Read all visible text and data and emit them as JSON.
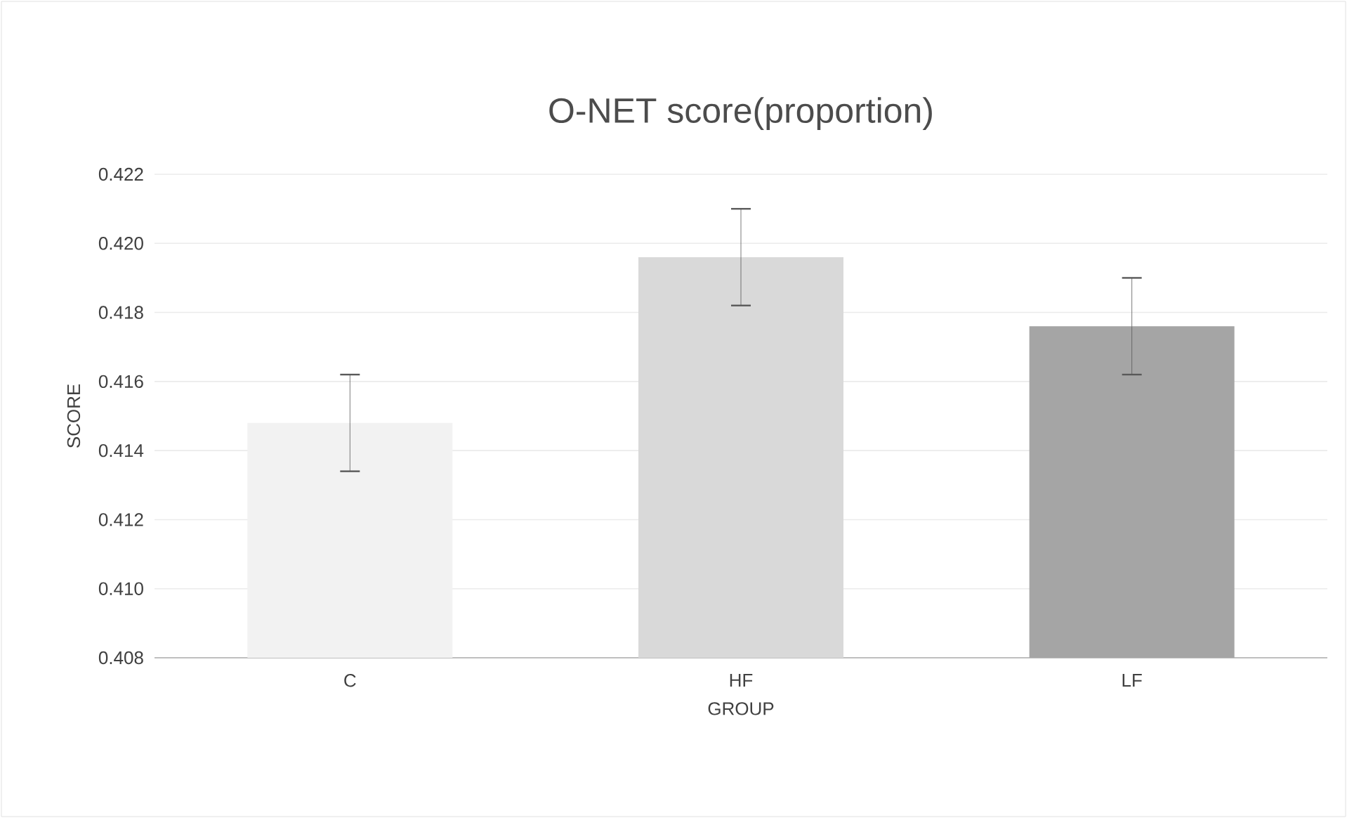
{
  "chart_data": {
    "type": "bar",
    "title": "O-NET score(proportion)",
    "xlabel": "GROUP",
    "ylabel": "SCORE",
    "categories": [
      "C",
      "HF",
      "LF"
    ],
    "values": [
      0.4148,
      0.4196,
      0.4176
    ],
    "errors": [
      0.0014,
      0.0014,
      0.0014
    ],
    "colors": [
      "#f2f2f2",
      "#d9d9d9",
      "#a5a5a5"
    ],
    "ylim": [
      0.408,
      0.422
    ],
    "yticks": [
      0.408,
      {
        "value": 0.41,
        "label": "0.410"
      },
      0.412,
      0.414,
      0.416,
      0.418,
      {
        "value": 0.42,
        "label": "0.420"
      },
      0.422
    ],
    "grid": "y"
  }
}
